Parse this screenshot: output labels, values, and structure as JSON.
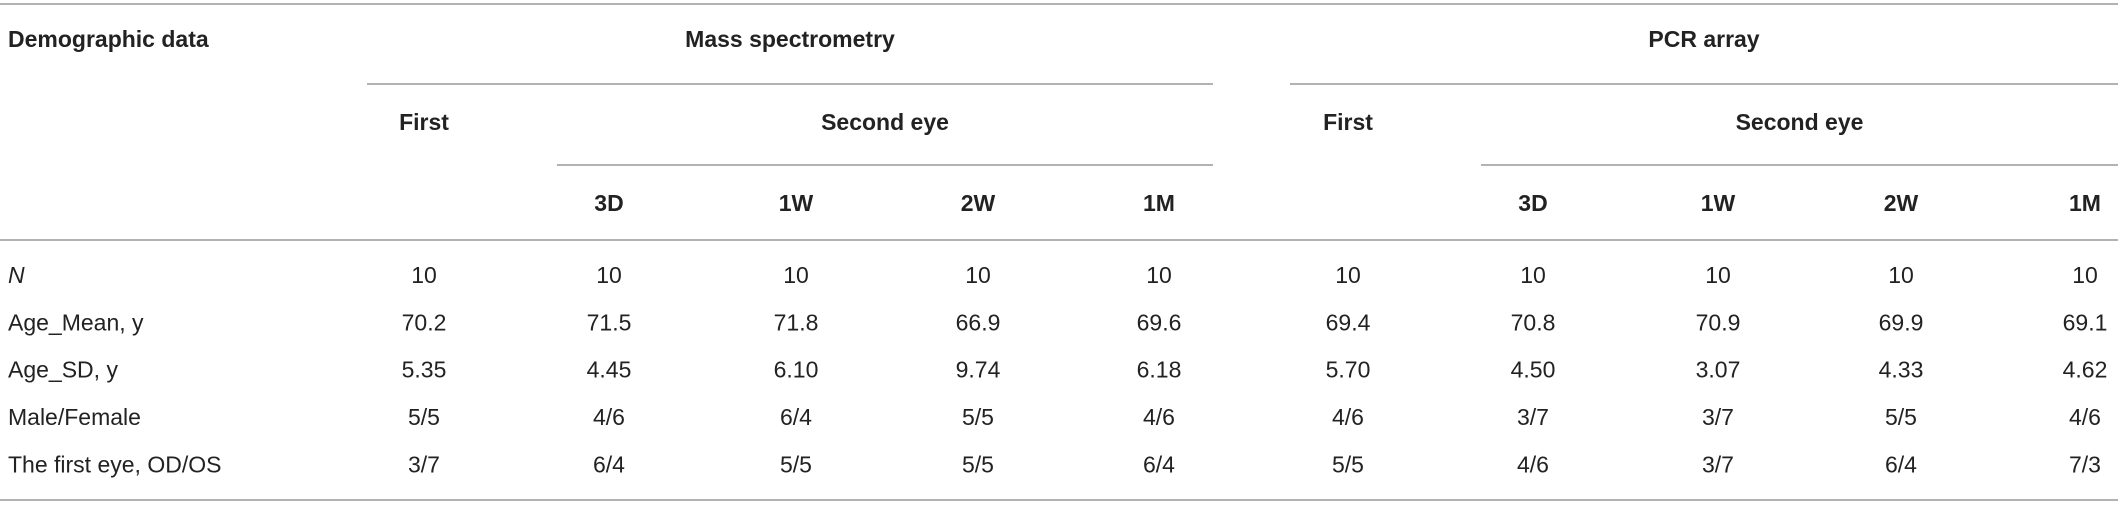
{
  "table": {
    "header": {
      "row_label": "Demographic data",
      "groups": [
        {
          "label": "Mass spectrometry",
          "first": "First",
          "second": "Second eye",
          "subcolumns": [
            "3D",
            "1W",
            "2W",
            "1M"
          ]
        },
        {
          "label": "PCR array",
          "first": "First",
          "second": "Second eye",
          "subcolumns": [
            "3D",
            "1W",
            "2W",
            "1M"
          ]
        }
      ]
    },
    "rows": [
      {
        "label": "N",
        "values": [
          "10",
          "10",
          "10",
          "10",
          "10",
          "10",
          "10",
          "10",
          "10",
          "10"
        ]
      },
      {
        "label": "Age_Mean, y",
        "values": [
          "70.2",
          "71.5",
          "71.8",
          "66.9",
          "69.6",
          "69.4",
          "70.8",
          "70.9",
          "69.9",
          "69.1"
        ]
      },
      {
        "label": "Age_SD, y",
        "values": [
          "5.35",
          "4.45",
          "6.10",
          "9.74",
          "6.18",
          "5.70",
          "4.50",
          "3.07",
          "4.33",
          "4.62"
        ]
      },
      {
        "label": "Male/Female",
        "values": [
          "5/5",
          "4/6",
          "6/4",
          "5/5",
          "4/6",
          "4/6",
          "3/7",
          "3/7",
          "5/5",
          "4/6"
        ]
      },
      {
        "label": "The first eye, OD/OS",
        "values": [
          "3/7",
          "6/4",
          "5/5",
          "5/5",
          "6/4",
          "5/5",
          "4/6",
          "3/7",
          "6/4",
          "7/3"
        ]
      }
    ]
  }
}
